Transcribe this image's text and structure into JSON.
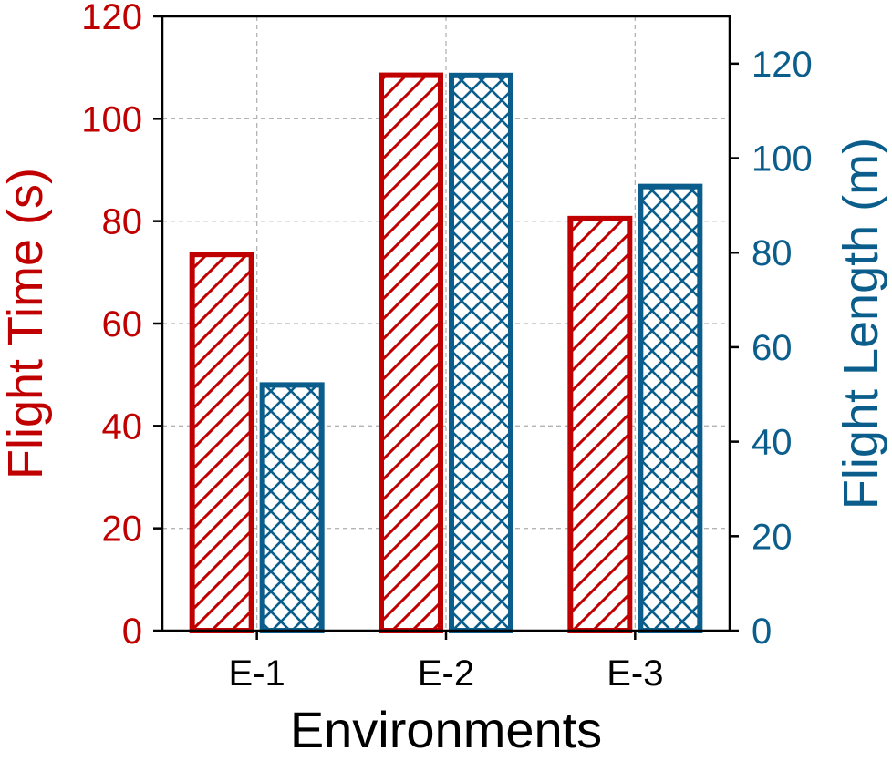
{
  "chart_data": {
    "type": "bar",
    "xlabel": "Environments",
    "categories": [
      "E-1",
      "E-2",
      "E-3"
    ],
    "grid": true,
    "series": [
      {
        "name": "Flight Time (s)",
        "axis": "left",
        "color": "#c00000",
        "pattern": "diagonal-hatch",
        "values": [
          73.5,
          108.5,
          80.5
        ]
      },
      {
        "name": "Flight Length (m)",
        "axis": "right",
        "color": "#0b5e8c",
        "pattern": "cross-hatch",
        "values": [
          52,
          117.5,
          94
        ]
      }
    ],
    "y_left": {
      "label": "Flight Time (s)",
      "ylim": [
        0,
        120
      ],
      "ticks": [
        "0",
        "20",
        "40",
        "60",
        "80",
        "100",
        "120"
      ]
    },
    "y_right": {
      "label": "Flight Length (m)",
      "ylim": [
        0,
        130
      ],
      "ticks": [
        "0",
        "20",
        "40",
        "60",
        "80",
        "100",
        "120"
      ]
    }
  }
}
